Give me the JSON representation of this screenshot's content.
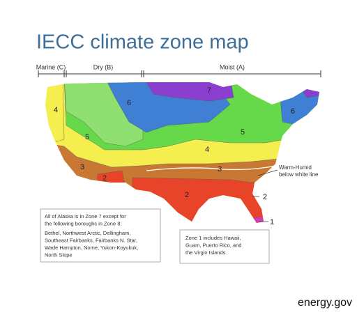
{
  "header": {
    "title": "IECC climate zone map"
  },
  "regions": [
    "Marine (C)",
    "Dry (B)",
    "Moist (A)"
  ],
  "zone_labels": [
    "4",
    "6",
    "7",
    "6",
    "5",
    "5",
    "4",
    "3",
    "2",
    "3",
    "2",
    "2",
    "1"
  ],
  "annotations": {
    "warm_humid": [
      "Warm-Humid",
      "below white line"
    ],
    "alaska_note": [
      "All of Alaska is in Zone 7 except for",
      "the following boroughs in Zone 8:",
      "Bethel, Northwest Arctic, Dellingham,",
      "Southeast Fairbanks, Fairbanks N. Star,",
      "Wade Hampton, Nome, Yukon-Koyukuk,",
      "North Slope"
    ],
    "zone1_note": [
      "Zone 1 includes Hawaii,",
      "Guam, Puerto Rico, and",
      "the Virgin Islands"
    ]
  },
  "footer": {
    "source": "energy.gov"
  }
}
